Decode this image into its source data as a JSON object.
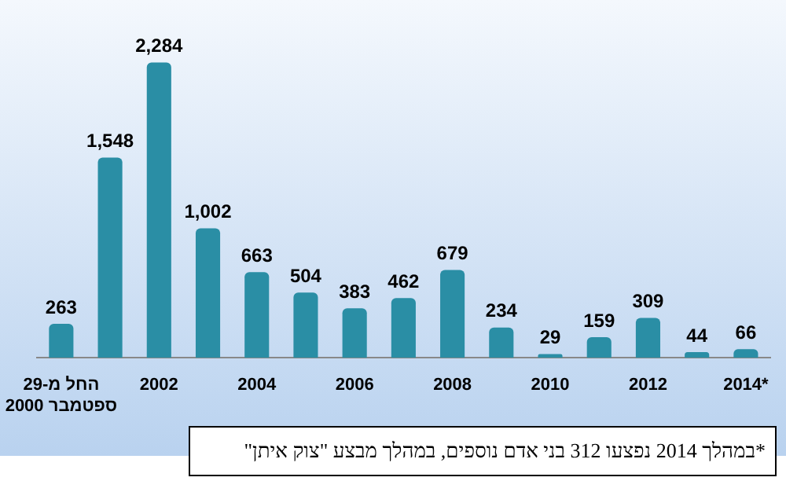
{
  "chart_data": {
    "type": "bar",
    "categories": [
      "החל מ-29 ספטמבר 2000",
      null,
      "2002",
      null,
      "2004",
      null,
      "2006",
      null,
      "2008",
      null,
      "2010",
      null,
      "2012",
      null,
      "2014*"
    ],
    "values": [
      263,
      1548,
      2284,
      1002,
      663,
      504,
      383,
      462,
      679,
      234,
      29,
      159,
      309,
      44,
      66
    ],
    "value_labels": [
      "263",
      "1,548",
      "2,284",
      "1,002",
      "663",
      "504",
      "383",
      "462",
      "679",
      "234",
      "29",
      "159",
      "309",
      "44",
      "66"
    ],
    "color": "#2a8ea5",
    "grid": false,
    "legend": false,
    "annotations": [
      "*במהלך 2014 נפצעו 312 בני אדם נוספים, במהלך מבצע \"צוק איתן\""
    ]
  }
}
